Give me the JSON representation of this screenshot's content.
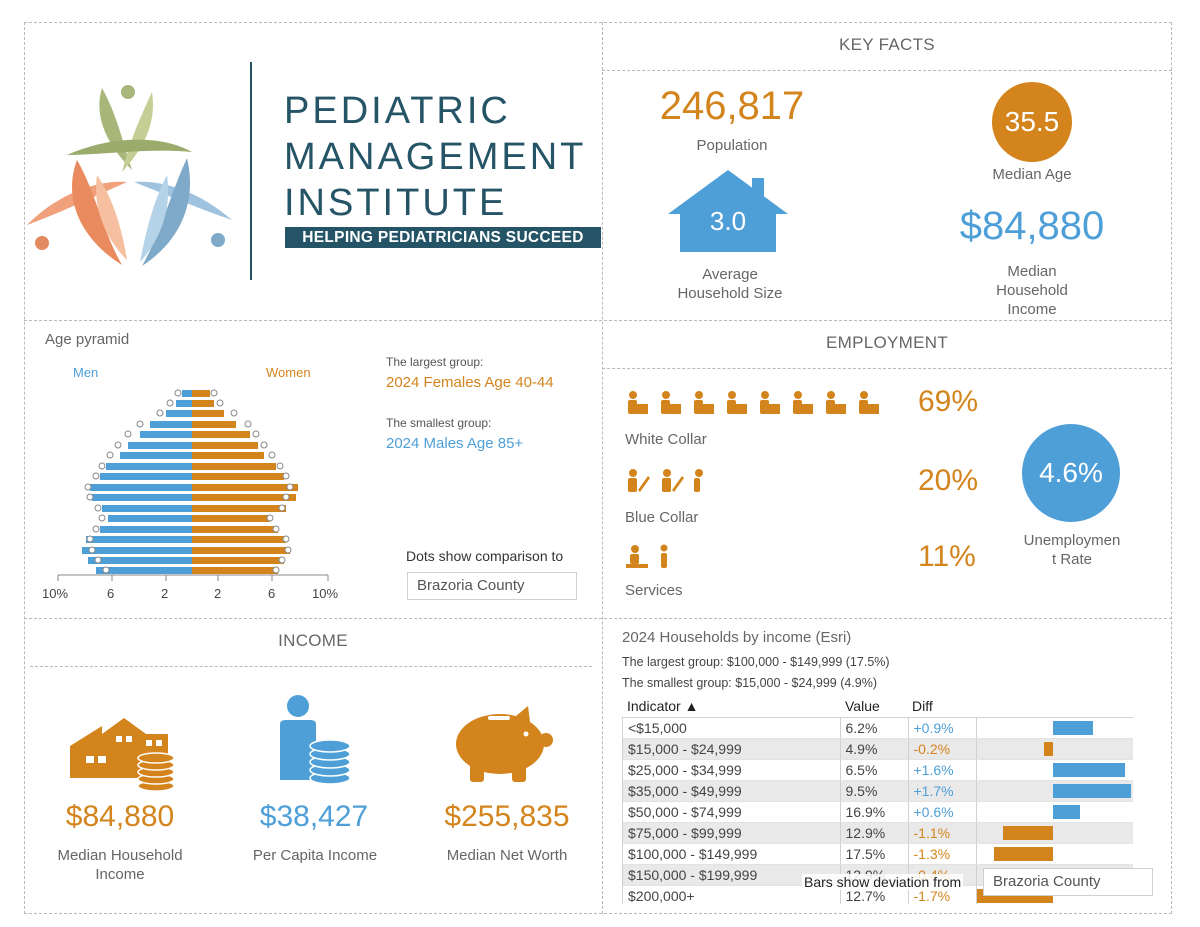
{
  "brand": {
    "line1": "PEDIATRIC",
    "line2": "MANAGEMENT",
    "line3": "INSTITUTE",
    "tagline": "HELPING PEDIATRICIANS SUCCEED"
  },
  "key_facts": {
    "title": "KEY FACTS",
    "population_value": "246,817",
    "population_label": "Population",
    "median_age_value": "35.5",
    "median_age_label": "Median Age",
    "household_size_value": "3.0",
    "household_size_label_1": "Average",
    "household_size_label_2": "Household Size",
    "median_income_value": "$84,880",
    "median_income_label_1": "Median",
    "median_income_label_2": "Household",
    "median_income_label_3": "Income"
  },
  "age_pyramid": {
    "title": "Age pyramid",
    "men_label": "Men",
    "women_label": "Women",
    "largest_caption": "The largest group:",
    "largest_value": "2024 Females Age 40-44",
    "smallest_caption": "The smallest group:",
    "smallest_value": "2024 Males Age 85+",
    "comparison_caption": "Dots show comparison to",
    "comparison_value": "Brazoria County",
    "axis_ticks": [
      "10%",
      "6",
      "2",
      "2",
      "6",
      "10%"
    ]
  },
  "employment": {
    "title": "EMPLOYMENT",
    "white_collar_pct": "69%",
    "white_collar_label": "White Collar",
    "blue_collar_pct": "20%",
    "blue_collar_label": "Blue Collar",
    "services_pct": "11%",
    "services_label": "Services",
    "unemployment_value": "4.6%",
    "unemployment_label_1": "Unemploymen",
    "unemployment_label_2": "t Rate",
    "colors": {
      "accent": "#d4841c",
      "circle": "#4e9fd8"
    }
  },
  "income": {
    "title": "INCOME",
    "median_household_value": "$84,880",
    "median_household_label_1": "Median Household",
    "median_household_label_2": "Income",
    "per_capita_value": "$38,427",
    "per_capita_label": "Per Capita Income",
    "net_worth_value": "$255,835",
    "net_worth_label": "Median Net Worth"
  },
  "households": {
    "title": "2024 Households by income (Esri)",
    "largest": "The largest group: $100,000 - $149,999 (17.5%)",
    "smallest": "The smallest group: $15,000 - $24,999 (4.9%)",
    "col_indicator": "Indicator ▲",
    "col_value": "Value",
    "col_diff": "Diff",
    "rows": [
      {
        "indicator": "<$15,000",
        "value": "6.2%",
        "diff": "+0.9%"
      },
      {
        "indicator": "$15,000 - $24,999",
        "value": "4.9%",
        "diff": "-0.2%"
      },
      {
        "indicator": "$25,000 - $34,999",
        "value": "6.5%",
        "diff": "+1.6%"
      },
      {
        "indicator": "$35,000 - $49,999",
        "value": "9.5%",
        "diff": "+1.7%"
      },
      {
        "indicator": "$50,000 - $74,999",
        "value": "16.9%",
        "diff": "+0.6%"
      },
      {
        "indicator": "$75,000 - $99,999",
        "value": "12.9%",
        "diff": "-1.1%"
      },
      {
        "indicator": "$100,000 - $149,999",
        "value": "17.5%",
        "diff": "-1.3%"
      },
      {
        "indicator": "$150,000 - $199,999",
        "value": "12.9%",
        "diff": "-0.4%"
      },
      {
        "indicator": "$200,000+",
        "value": "12.7%",
        "diff": "-1.7%"
      }
    ],
    "bars_caption": "Bars show deviation from",
    "bars_value": "Brazoria County"
  }
}
